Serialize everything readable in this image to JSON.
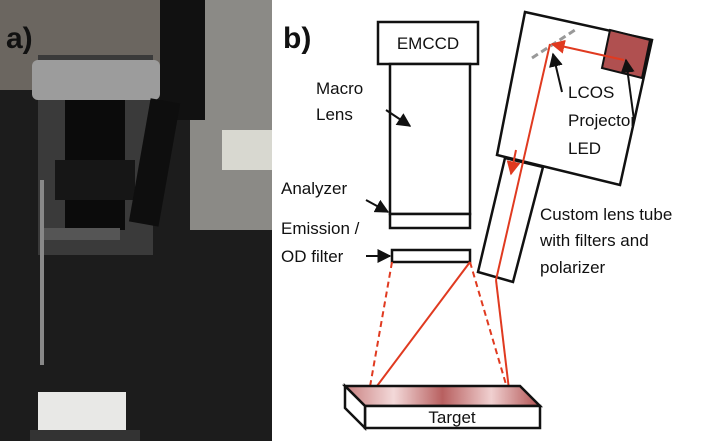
{
  "panels": {
    "a": "a)",
    "b": "b)"
  },
  "labels": {
    "camera": "EMCCD",
    "macro_lens": [
      "Macro",
      "Lens"
    ],
    "analyzer": "Analyzer",
    "filter": [
      "Emission /",
      "OD filter"
    ],
    "projector": [
      "LCOS",
      "Projector",
      "LED"
    ],
    "lens_tube": [
      "Custom lens tube",
      "with filters and",
      "polarizer"
    ],
    "target": "Target"
  }
}
